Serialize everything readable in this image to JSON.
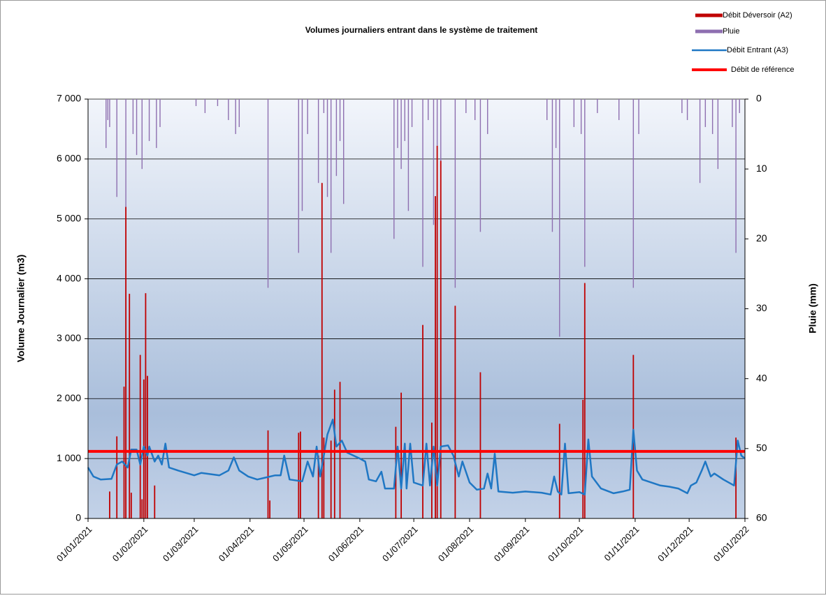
{
  "chart_data": {
    "type": "combo",
    "title": "Volumes journaliers entrant dans le système de traitement",
    "ylabel": "Volume Journalier (m3)",
    "y2label": "Pluie (mm)",
    "xlim": [
      "01/01/2021",
      "01/01/2022"
    ],
    "xticks": [
      "01/01/2021",
      "01/02/2021",
      "01/03/2021",
      "01/04/2021",
      "01/05/2021",
      "01/06/2021",
      "01/07/2021",
      "01/08/2021",
      "01/09/2021",
      "01/10/2021",
      "01/11/2021",
      "01/12/2021",
      "01/01/2022"
    ],
    "ylim": [
      0,
      7000
    ],
    "yticks": [
      0,
      {
        "value": 1000,
        "label": "1 000"
      },
      {
        "value": 2000,
        "label": "2 000"
      },
      {
        "value": 3000,
        "label": "3 000"
      },
      {
        "value": 4000,
        "label": "4 000"
      },
      {
        "value": 5000,
        "label": "5 000"
      },
      {
        "value": 6000,
        "label": "6 000"
      },
      {
        "value": 7000,
        "label": "7 000"
      }
    ],
    "y2lim": [
      60,
      0
    ],
    "y2ticks": [
      0,
      10,
      20,
      30,
      40,
      50,
      60
    ],
    "grid": true,
    "legend": "top-right",
    "series": [
      {
        "name": "Débit Déversoir (A2)",
        "type": "bar",
        "color": "#c00000",
        "x": [
          "13/01/2021",
          "17/01/2021",
          "21/01/2021",
          "22/01/2021",
          "24/01/2021",
          "25/01/2021",
          "30/01/2021",
          "31/01/2021",
          "01/02/2021",
          "02/02/2021",
          "03/02/2021",
          "07/02/2021",
          "11/04/2021",
          "12/04/2021",
          "28/04/2021",
          "29/04/2021",
          "09/05/2021",
          "11/05/2021",
          "12/05/2021",
          "16/05/2021",
          "18/05/2021",
          "21/05/2021",
          "21/06/2021",
          "24/06/2021",
          "06/07/2021",
          "11/07/2021",
          "13/07/2021",
          "14/07/2021",
          "16/07/2021",
          "24/07/2021",
          "07/08/2021",
          "20/09/2021",
          "03/10/2021",
          "04/10/2021",
          "31/10/2021",
          "27/12/2021"
        ],
        "values": [
          450,
          1370,
          2200,
          5200,
          3750,
          430,
          2730,
          320,
          2320,
          3760,
          2380,
          550,
          1470,
          300,
          1430,
          1450,
          1050,
          5600,
          1350,
          1300,
          2150,
          2280,
          1530,
          2100,
          3230,
          1600,
          5380,
          6220,
          5970,
          3550,
          2440,
          1580,
          1980,
          3930,
          2730,
          1350
        ]
      },
      {
        "name": "Pluie",
        "type": "bar",
        "axis": "y2",
        "color": "#8e6fb0",
        "x": [
          "11/01/2021",
          "12/01/2021",
          "13/01/2021",
          "17/01/2021",
          "22/01/2021",
          "26/01/2021",
          "28/01/2021",
          "31/01/2021",
          "04/02/2021",
          "08/02/2021",
          "10/02/2021",
          "02/03/2021",
          "07/03/2021",
          "14/03/2021",
          "20/03/2021",
          "24/03/2021",
          "26/03/2021",
          "11/04/2021",
          "28/04/2021",
          "30/04/2021",
          "03/05/2021",
          "09/05/2021",
          "12/05/2021",
          "14/05/2021",
          "16/05/2021",
          "19/05/2021",
          "21/05/2021",
          "23/05/2021",
          "20/06/2021",
          "22/06/2021",
          "24/06/2021",
          "26/06/2021",
          "28/06/2021",
          "30/06/2021",
          "06/07/2021",
          "09/07/2021",
          "12/07/2021",
          "14/07/2021",
          "16/07/2021",
          "24/07/2021",
          "30/07/2021",
          "04/08/2021",
          "07/08/2021",
          "11/08/2021",
          "13/09/2021",
          "16/09/2021",
          "18/09/2021",
          "20/09/2021",
          "28/09/2021",
          "02/10/2021",
          "04/10/2021",
          "11/10/2021",
          "23/10/2021",
          "31/10/2021",
          "03/11/2021",
          "27/11/2021",
          "30/11/2021",
          "07/12/2021",
          "10/12/2021",
          "14/12/2021",
          "17/12/2021",
          "25/12/2021",
          "27/12/2021",
          "29/12/2021"
        ],
        "values": [
          7,
          3,
          4,
          14,
          16,
          5,
          8,
          10,
          6,
          7,
          4,
          1,
          2,
          1,
          3,
          5,
          4,
          27,
          22,
          16,
          5,
          12,
          2,
          14,
          22,
          11,
          6,
          15,
          20,
          7,
          10,
          6,
          16,
          4,
          24,
          3,
          18,
          22,
          30,
          27,
          2,
          3,
          19,
          5,
          3,
          19,
          7,
          34,
          4,
          5,
          24,
          2,
          3,
          27,
          5,
          2,
          3,
          12,
          4,
          5,
          10,
          4,
          22,
          2
        ]
      },
      {
        "name": "Débit Entrant (A3)",
        "type": "line",
        "color": "#1f77c4",
        "x": [
          "01/01/2021",
          "04/01/2021",
          "08/01/2021",
          "14/01/2021",
          "17/01/2021",
          "20/01/2021",
          "23/01/2021",
          "25/01/2021",
          "28/01/2021",
          "30/01/2021",
          "01/02/2021",
          "03/02/2021",
          "04/02/2021",
          "07/02/2021",
          "09/02/2021",
          "11/02/2021",
          "13/02/2021",
          "15/02/2021",
          "20/02/2021",
          "01/03/2021",
          "05/03/2021",
          "15/03/2021",
          "20/03/2021",
          "23/03/2021",
          "26/03/2021",
          "31/03/2021",
          "05/04/2021",
          "15/04/2021",
          "18/04/2021",
          "20/04/2021",
          "23/04/2021",
          "30/04/2021",
          "03/05/2021",
          "06/05/2021",
          "08/05/2021",
          "10/05/2021",
          "12/05/2021",
          "14/05/2021",
          "17/05/2021",
          "19/05/2021",
          "22/05/2021",
          "25/05/2021",
          "01/06/2021",
          "04/06/2021",
          "06/06/2021",
          "10/06/2021",
          "13/06/2021",
          "15/06/2021",
          "20/06/2021",
          "22/06/2021",
          "24/06/2021",
          "26/06/2021",
          "27/06/2021",
          "29/06/2021",
          "01/07/2021",
          "06/07/2021",
          "08/07/2021",
          "10/07/2021",
          "12/07/2021",
          "14/07/2021",
          "16/07/2021",
          "20/07/2021",
          "23/07/2021",
          "26/07/2021",
          "28/07/2021",
          "01/08/2021",
          "05/08/2021",
          "09/08/2021",
          "11/08/2021",
          "13/08/2021",
          "15/08/2021",
          "17/08/2021",
          "25/08/2021",
          "01/09/2021",
          "10/09/2021",
          "15/09/2021",
          "17/09/2021",
          "19/09/2021",
          "21/09/2021",
          "23/09/2021",
          "25/09/2021",
          "01/10/2021",
          "04/10/2021",
          "06/10/2021",
          "08/10/2021",
          "13/10/2021",
          "20/10/2021",
          "25/10/2021",
          "29/10/2021",
          "31/10/2021",
          "02/11/2021",
          "05/11/2021",
          "15/11/2021",
          "20/11/2021",
          "25/11/2021",
          "30/11/2021",
          "02/12/2021",
          "05/12/2021",
          "08/12/2021",
          "10/12/2021",
          "13/12/2021",
          "15/12/2021",
          "20/12/2021",
          "26/12/2021",
          "28/12/2021",
          "30/12/2021",
          "01/01/2022"
        ],
        "values": [
          850,
          700,
          650,
          660,
          900,
          950,
          850,
          1150,
          1150,
          900,
          1200,
          1050,
          1200,
          950,
          1050,
          900,
          1250,
          850,
          800,
          720,
          760,
          720,
          800,
          1020,
          800,
          700,
          650,
          720,
          720,
          1050,
          650,
          620,
          950,
          700,
          1200,
          700,
          1050,
          1400,
          1650,
          1200,
          1300,
          1100,
          1000,
          950,
          650,
          620,
          780,
          500,
          500,
          1200,
          500,
          1250,
          500,
          1250,
          600,
          550,
          1250,
          550,
          1200,
          550,
          1200,
          1220,
          1050,
          700,
          950,
          600,
          480,
          500,
          750,
          500,
          1080,
          450,
          430,
          450,
          430,
          400,
          700,
          450,
          400,
          1250,
          420,
          440,
          400,
          1320,
          700,
          500,
          420,
          450,
          480,
          1480,
          800,
          650,
          550,
          530,
          500,
          420,
          550,
          600,
          800,
          950,
          700,
          750,
          650,
          550,
          1300,
          1050,
          1000
        ]
      },
      {
        "name": "Débit de référence",
        "type": "hline",
        "color": "#ff0000",
        "value": 1120
      }
    ]
  }
}
